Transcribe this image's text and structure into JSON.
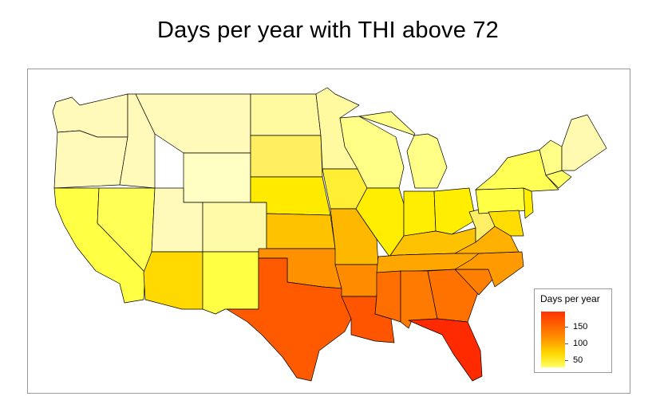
{
  "title": "Days per year with THI above 72",
  "legend": {
    "title": "Days per year",
    "ticks": [
      "150",
      "100",
      "50"
    ],
    "colors": [
      "#ffff66",
      "#ffd700",
      "#ff8c00",
      "#ff3300"
    ]
  }
}
